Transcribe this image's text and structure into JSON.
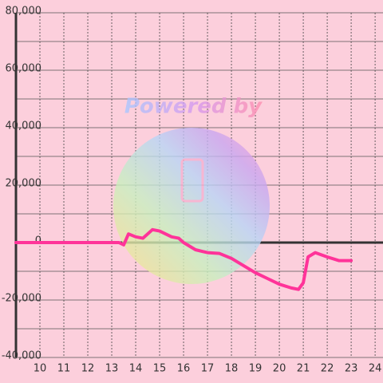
{
  "chart_data": {
    "type": "line",
    "watermark": "Powered by",
    "x": [
      9,
      13.3,
      13.5,
      13.7,
      14.0,
      14.3,
      14.7,
      15.0,
      15.5,
      15.8,
      16.0,
      16.5,
      17.0,
      17.5,
      18.0,
      18.5,
      19.0,
      19.5,
      20.0,
      20.5,
      20.8,
      21.0,
      21.2,
      21.5,
      22.0,
      22.5,
      23.0
    ],
    "series": [
      {
        "color": "#ff3399",
        "values": [
          0,
          0,
          -800,
          3000,
          2000,
          1500,
          4500,
          4000,
          2000,
          1500,
          0,
          -2500,
          -3500,
          -3800,
          -5500,
          -8000,
          -10500,
          -12500,
          -14500,
          -15800,
          -16300,
          -14000,
          -5000,
          -3500,
          -5000,
          -6300,
          -6300
        ]
      }
    ],
    "xlim": [
      9,
      24.33
    ],
    "xticks": [
      10,
      11,
      12,
      13,
      14,
      15,
      16,
      17,
      18,
      19,
      20,
      21,
      22,
      23,
      24
    ],
    "ylim": [
      -40000,
      80000
    ],
    "yticks": [
      {
        "value": -40000,
        "label": "-40,000"
      },
      {
        "value": -20000,
        "label": "-20,000"
      },
      0,
      {
        "value": 20000,
        "label": "20,000"
      },
      {
        "value": 40000,
        "label": "40,000"
      },
      {
        "value": 60000,
        "label": "60,000"
      },
      {
        "value": 80000,
        "label": "80,000"
      }
    ],
    "grid": true
  }
}
